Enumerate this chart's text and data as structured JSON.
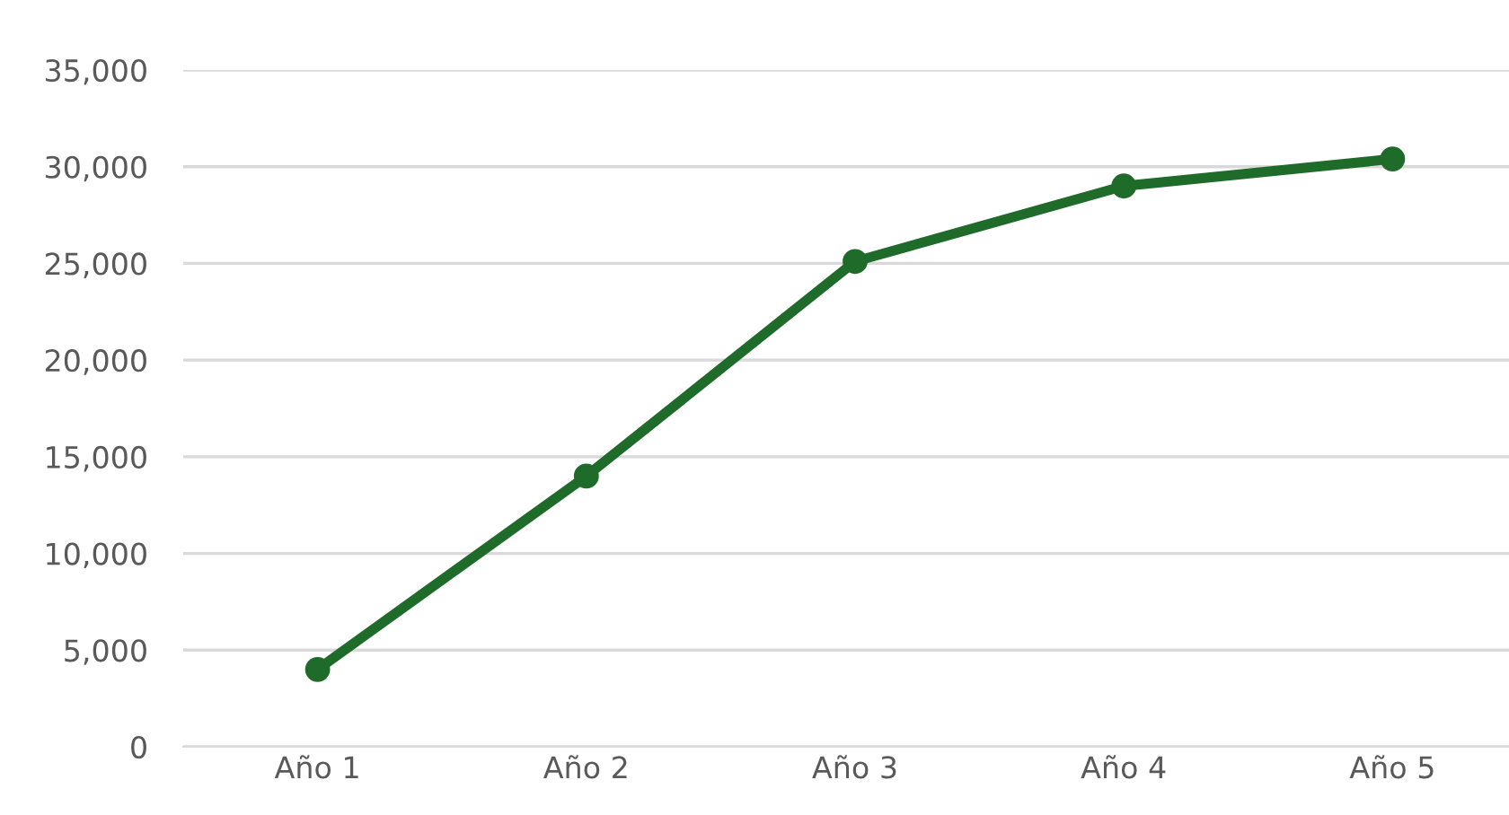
{
  "chart_data": {
    "type": "line",
    "categories": [
      "Año 1",
      "Año 2",
      "Año 3",
      "Año 4",
      "Año 5"
    ],
    "series": [
      {
        "color": "#1e6b2a",
        "values": [
          4000,
          14000,
          25100,
          29000,
          30400
        ]
      }
    ],
    "ylim": [
      0,
      35000
    ],
    "yticks": [
      {
        "value": 0,
        "label": "0"
      },
      {
        "value": 5000,
        "label": "5,000"
      },
      {
        "value": 10000,
        "label": "10,000"
      },
      {
        "value": 15000,
        "label": "15,000"
      },
      {
        "value": 20000,
        "label": "20,000"
      },
      {
        "value": 25000,
        "label": "25,000"
      },
      {
        "value": 30000,
        "label": "30,000"
      },
      {
        "value": 35000,
        "label": "35,000"
      }
    ],
    "grid": "y",
    "marker": "circle",
    "line_style": "solid"
  }
}
